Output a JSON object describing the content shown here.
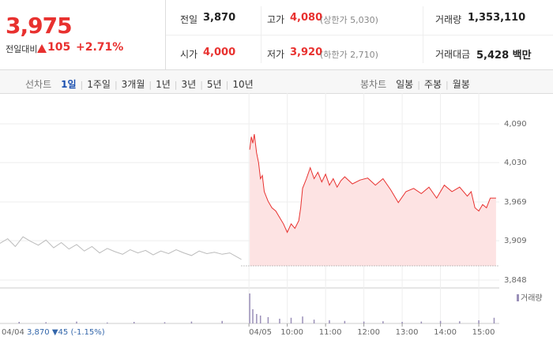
{
  "quote": {
    "price": "3,975",
    "change_label": "전일대비",
    "change": "105",
    "change_pct": "+2.71%"
  },
  "stats": [
    [
      {
        "label": "전일",
        "value": "3,870"
      },
      {
        "label": "고가",
        "value": "4,080",
        "note": "(상한가 5,030)"
      },
      {
        "label": "거래량",
        "value": "1,353,110"
      }
    ],
    [
      {
        "label": "시가",
        "value": "4,000"
      },
      {
        "label": "저가",
        "value": "3,920",
        "note": "(하한가 2,710)"
      },
      {
        "label": "거래대금",
        "value": "5,428 백만"
      }
    ]
  ],
  "tabs": {
    "line_label": "선차트",
    "line": [
      "1일",
      "1주일",
      "3개월",
      "1년",
      "3년",
      "5년",
      "10년"
    ],
    "candle_label": "봉차트",
    "candle": [
      "일봉",
      "주봉",
      "월봉"
    ]
  },
  "prev_day": {
    "date": "04/04",
    "close": "3,870",
    "change": "45",
    "change_pct": "(-1.15%)"
  },
  "chart_data": {
    "type": "line",
    "xlim": [
      0,
      13.2
    ],
    "xticks": [
      {
        "value": 6.5,
        "label": "04/05"
      },
      {
        "value": 7.5,
        "label": "10:00"
      },
      {
        "value": 8.5,
        "label": "11:00"
      },
      {
        "value": 9.5,
        "label": "12:00"
      },
      {
        "value": 10.5,
        "label": "13:00"
      },
      {
        "value": 11.5,
        "label": "14:00"
      },
      {
        "value": 12.5,
        "label": "15:00"
      }
    ],
    "ylim": [
      3848,
      4090
    ],
    "yticks": [
      {
        "value": 4090,
        "label": "4,090"
      },
      {
        "value": 4030,
        "label": "4,030"
      },
      {
        "value": 3969,
        "label": "3,969"
      },
      {
        "value": 3909,
        "label": "3,909"
      },
      {
        "value": 3848,
        "label": "3,848"
      }
    ],
    "baseline": 3870,
    "grid": true,
    "series": [
      {
        "color": "#bbbbbb",
        "x": [
          0,
          0.2,
          0.4,
          0.6,
          0.8,
          1,
          1.2,
          1.4,
          1.6,
          1.8,
          2,
          2.2,
          2.4,
          2.6,
          2.8,
          3,
          3.2,
          3.4,
          3.6,
          3.8,
          4,
          4.2,
          4.4,
          4.6,
          4.8,
          5,
          5.2,
          5.4,
          5.6,
          5.8,
          6,
          6.3
        ],
        "values": [
          3905,
          3912,
          3900,
          3915,
          3908,
          3902,
          3910,
          3898,
          3906,
          3896,
          3903,
          3893,
          3900,
          3890,
          3897,
          3892,
          3888,
          3895,
          3890,
          3894,
          3887,
          3893,
          3889,
          3895,
          3890,
          3886,
          3893,
          3889,
          3891,
          3888,
          3890,
          3880
        ]
      },
      {
        "color": "#e8312f",
        "fill": "#fde3e3",
        "x": [
          6.52,
          6.56,
          6.6,
          6.64,
          6.7,
          6.75,
          6.8,
          6.85,
          6.9,
          7.0,
          7.1,
          7.2,
          7.3,
          7.4,
          7.5,
          7.6,
          7.7,
          7.8,
          7.85,
          7.9,
          8.0,
          8.1,
          8.2,
          8.3,
          8.4,
          8.5,
          8.6,
          8.7,
          8.8,
          8.9,
          9.0,
          9.2,
          9.4,
          9.6,
          9.8,
          10.0,
          10.2,
          10.4,
          10.6,
          10.8,
          11.0,
          11.2,
          11.4,
          11.6,
          11.8,
          12.0,
          12.2,
          12.3,
          12.4,
          12.5,
          12.6,
          12.7,
          12.8,
          12.95
        ],
        "values": [
          4050,
          4070,
          4060,
          4074,
          4045,
          4030,
          4005,
          4010,
          3985,
          3970,
          3960,
          3955,
          3945,
          3935,
          3922,
          3935,
          3928,
          3940,
          3960,
          3990,
          4005,
          4022,
          4005,
          4015,
          4000,
          4012,
          3995,
          4005,
          3992,
          4002,
          4008,
          3997,
          4003,
          4006,
          3995,
          4005,
          3988,
          3968,
          3985,
          3990,
          3982,
          3992,
          3975,
          3995,
          3985,
          3992,
          3978,
          3985,
          3960,
          3955,
          3965,
          3960,
          3975,
          3975
        ]
      }
    ],
    "volume": {
      "name": "거래량",
      "color": "#9a8fb8",
      "ylim": [
        0,
        100
      ],
      "x": [
        0.5,
        1.2,
        2.0,
        2.8,
        3.5,
        4.3,
        5.0,
        5.8,
        6.52,
        6.6,
        6.7,
        6.8,
        7.0,
        7.3,
        7.6,
        7.9,
        8.2,
        8.6,
        9.0,
        9.5,
        10.0,
        10.5,
        11.0,
        11.5,
        12.0,
        12.5,
        12.9
      ],
      "values": [
        5,
        4,
        6,
        3,
        5,
        4,
        6,
        8,
        95,
        45,
        30,
        25,
        20,
        15,
        18,
        22,
        12,
        10,
        8,
        6,
        7,
        5,
        6,
        8,
        7,
        10,
        18
      ]
    }
  }
}
